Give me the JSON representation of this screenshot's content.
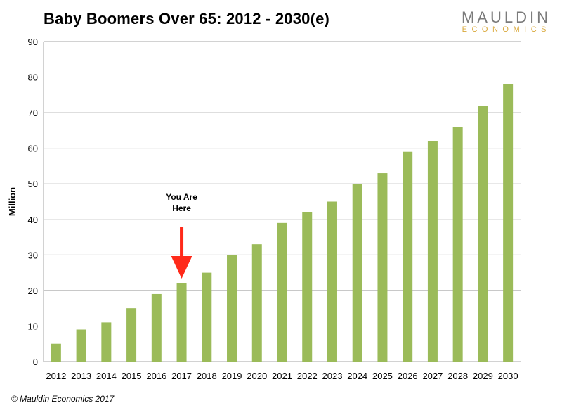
{
  "header": {
    "title": "Baby Boomers Over 65: 2012 - 2030(e)",
    "logo_main": "MAULDIN",
    "logo_sub": "ECONOMICS"
  },
  "footer": {
    "copyright": "© Mauldin Economics 2017"
  },
  "colors": {
    "bar": "#9bbb59",
    "grid": "#a6a6a6",
    "arrow": "#ff2a1a"
  },
  "chart_data": {
    "type": "bar",
    "title": "Baby Boomers Over 65: 2012 - 2030(e)",
    "xlabel": "",
    "ylabel": "Million",
    "ylim": [
      0,
      90
    ],
    "yticks": [
      0,
      10,
      20,
      30,
      40,
      50,
      60,
      70,
      80,
      90
    ],
    "grid": true,
    "categories": [
      "2012",
      "2013",
      "2014",
      "2015",
      "2016",
      "2017",
      "2018",
      "2019",
      "2020",
      "2021",
      "2022",
      "2023",
      "2024",
      "2025",
      "2026",
      "2027",
      "2028",
      "2029",
      "2030"
    ],
    "values": [
      5,
      9,
      11,
      15,
      19,
      22,
      25,
      30,
      33,
      39,
      42,
      45,
      50,
      53,
      59,
      62,
      66,
      72,
      78
    ],
    "annotation": {
      "line1": "You Are",
      "line2": "Here",
      "category": "2017"
    }
  }
}
